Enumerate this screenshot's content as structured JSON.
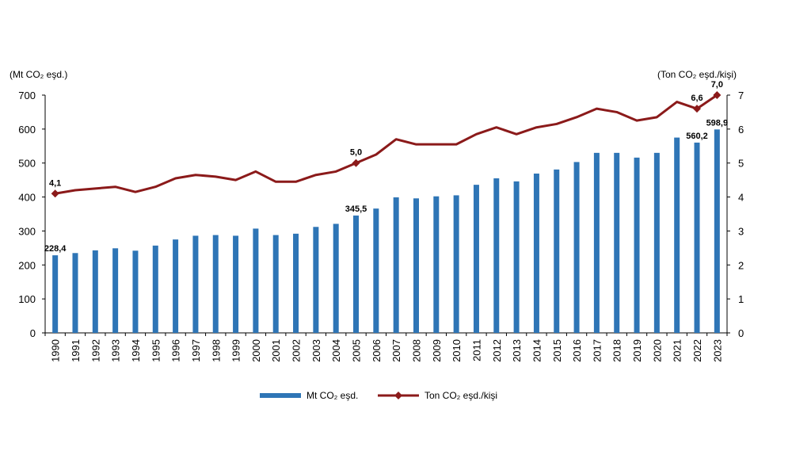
{
  "chart_data": {
    "type": "bar",
    "title": "",
    "left_unit_label": "(Mt CO₂ eşd.)",
    "right_unit_label": "(Ton CO₂ eşd./kişi)",
    "categories": [
      "1990",
      "1991",
      "1992",
      "1993",
      "1994",
      "1995",
      "1996",
      "1997",
      "1998",
      "1999",
      "2000",
      "2001",
      "2002",
      "2003",
      "2004",
      "2005",
      "2006",
      "2007",
      "2008",
      "2009",
      "2010",
      "2011",
      "2012",
      "2013",
      "2014",
      "2015",
      "2016",
      "2017",
      "2018",
      "2019",
      "2020",
      "2021",
      "2022",
      "2023"
    ],
    "ylim_left": [
      0,
      700
    ],
    "yticks_left": [
      "0",
      "100",
      "200",
      "300",
      "400",
      "500",
      "600",
      "700"
    ],
    "ylim_right": [
      0,
      7
    ],
    "yticks_right": [
      "0",
      "1",
      "2",
      "3",
      "4",
      "5",
      "6",
      "7"
    ],
    "grid": false,
    "legend_position": "bottom",
    "series": [
      {
        "name": "Mt CO₂ eşd.",
        "type": "bar",
        "axis": "left",
        "color": "#2E75B6",
        "values": [
          228.4,
          235,
          243,
          249,
          242,
          257,
          275,
          286,
          288,
          286,
          307,
          288,
          292,
          312,
          321,
          345.5,
          366,
          399,
          396,
          402,
          405,
          436,
          455,
          446,
          469,
          481,
          503,
          530,
          530,
          516,
          530,
          575,
          560.2,
          598.9
        ]
      },
      {
        "name": "Ton CO₂ eşd./kişi",
        "type": "line",
        "axis": "right",
        "color": "#8B1A1A",
        "values": [
          4.1,
          4.2,
          4.25,
          4.3,
          4.15,
          4.3,
          4.55,
          4.65,
          4.6,
          4.5,
          4.75,
          4.45,
          4.45,
          4.65,
          4.75,
          5.0,
          5.25,
          5.7,
          5.55,
          5.55,
          5.55,
          5.85,
          6.05,
          5.85,
          6.05,
          6.15,
          6.35,
          6.6,
          6.5,
          6.25,
          6.35,
          6.8,
          6.6,
          7.0
        ]
      }
    ],
    "data_labels": [
      {
        "series": "Mt CO₂ eşd.",
        "index": 0,
        "text": "228,4"
      },
      {
        "series": "Mt CO₂ eşd.",
        "index": 15,
        "text": "345,5"
      },
      {
        "series": "Mt CO₂ eşd.",
        "index": 32,
        "text": "560,2"
      },
      {
        "series": "Mt CO₂ eşd.",
        "index": 33,
        "text": "598,9"
      },
      {
        "series": "Ton CO₂ eşd./kişi",
        "index": 0,
        "text": "4,1"
      },
      {
        "series": "Ton CO₂ eşd./kişi",
        "index": 15,
        "text": "5,0"
      },
      {
        "series": "Ton CO₂ eşd./kişi",
        "index": 32,
        "text": "6,6"
      },
      {
        "series": "Ton CO₂ eşd./kişi",
        "index": 33,
        "text": "7,0"
      }
    ]
  }
}
